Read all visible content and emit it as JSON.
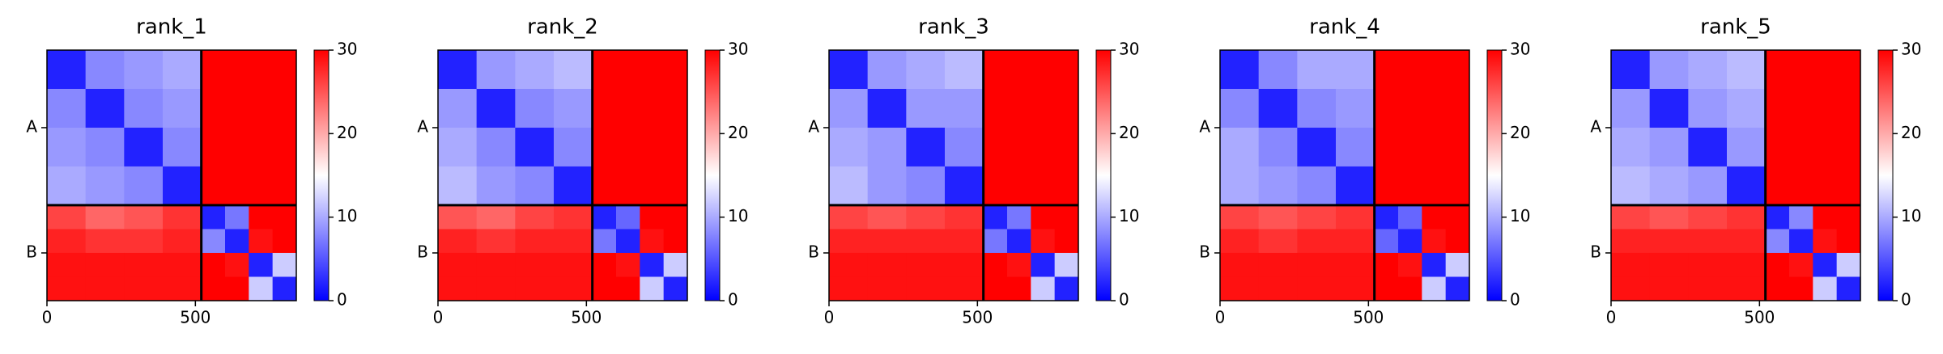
{
  "chart_data": [
    {
      "type": "heatmap",
      "title": "rank_1",
      "x_edges": [
        0,
        130,
        260,
        390,
        520,
        600,
        680,
        760,
        840
      ],
      "y_edges": [
        0,
        130,
        260,
        390,
        520,
        600,
        680,
        760,
        840
      ],
      "values": [
        [
          2,
          8,
          9,
          10,
          30,
          30,
          30,
          30
        ],
        [
          8,
          2,
          8,
          9,
          30,
          30,
          30,
          30
        ],
        [
          9,
          8,
          2,
          8,
          30,
          30,
          30,
          30
        ],
        [
          10,
          9,
          8,
          2,
          30,
          30,
          30,
          30
        ],
        [
          26,
          24,
          25,
          27,
          2,
          7,
          30,
          30
        ],
        [
          28,
          27,
          27,
          28,
          8,
          2,
          29,
          30
        ],
        [
          29,
          29,
          29,
          29,
          30,
          29,
          2,
          12
        ],
        [
          29,
          29,
          29,
          29,
          30,
          30,
          12,
          2
        ]
      ],
      "xlim": [
        0,
        840
      ],
      "ylim": [
        840,
        0
      ],
      "xticks": [
        0,
        500
      ],
      "yticks": [
        {
          "value": 260,
          "label": "A"
        },
        {
          "value": 680,
          "label": "B"
        }
      ],
      "chain_boundaries": [
        520
      ],
      "clim": [
        0,
        30
      ],
      "cticks": [
        0,
        10,
        20,
        30
      ],
      "colormap": [
        "#0000ff",
        "#ffffff",
        "#ff0000"
      ]
    },
    {
      "type": "heatmap",
      "title": "rank_2",
      "x_edges": [
        0,
        130,
        260,
        390,
        520,
        600,
        680,
        760,
        840
      ],
      "y_edges": [
        0,
        130,
        260,
        390,
        520,
        600,
        680,
        760,
        840
      ],
      "values": [
        [
          2,
          9,
          10,
          11,
          30,
          30,
          30,
          30
        ],
        [
          9,
          2,
          8,
          9,
          30,
          30,
          30,
          30
        ],
        [
          10,
          8,
          2,
          8,
          30,
          30,
          30,
          30
        ],
        [
          11,
          9,
          8,
          2,
          30,
          30,
          30,
          30
        ],
        [
          25,
          24,
          26,
          27,
          2,
          6,
          30,
          30
        ],
        [
          28,
          27,
          28,
          28,
          7,
          2,
          29,
          30
        ],
        [
          29,
          29,
          29,
          29,
          30,
          29,
          2,
          12
        ],
        [
          29,
          29,
          29,
          29,
          30,
          30,
          12,
          2
        ]
      ],
      "xlim": [
        0,
        840
      ],
      "ylim": [
        840,
        0
      ],
      "xticks": [
        0,
        500
      ],
      "yticks": [
        {
          "value": 260,
          "label": "A"
        },
        {
          "value": 680,
          "label": "B"
        }
      ],
      "chain_boundaries": [
        520
      ],
      "clim": [
        0,
        30
      ],
      "cticks": [
        0,
        10,
        20,
        30
      ],
      "colormap": [
        "#0000ff",
        "#ffffff",
        "#ff0000"
      ]
    },
    {
      "type": "heatmap",
      "title": "rank_3",
      "x_edges": [
        0,
        130,
        260,
        390,
        520,
        600,
        680,
        760,
        840
      ],
      "y_edges": [
        0,
        130,
        260,
        390,
        520,
        600,
        680,
        760,
        840
      ],
      "values": [
        [
          2,
          9,
          10,
          11,
          30,
          30,
          30,
          30
        ],
        [
          9,
          2,
          9,
          9,
          30,
          30,
          30,
          30
        ],
        [
          10,
          9,
          2,
          8,
          30,
          30,
          30,
          30
        ],
        [
          11,
          9,
          8,
          2,
          30,
          30,
          30,
          30
        ],
        [
          26,
          25,
          26,
          27,
          2,
          7,
          30,
          30
        ],
        [
          28,
          28,
          28,
          28,
          7,
          2,
          29,
          30
        ],
        [
          29,
          29,
          29,
          29,
          30,
          29,
          2,
          12
        ],
        [
          29,
          29,
          29,
          29,
          30,
          30,
          12,
          2
        ]
      ],
      "xlim": [
        0,
        840
      ],
      "ylim": [
        840,
        0
      ],
      "xticks": [
        0,
        500
      ],
      "yticks": [
        {
          "value": 260,
          "label": "A"
        },
        {
          "value": 680,
          "label": "B"
        }
      ],
      "chain_boundaries": [
        520
      ],
      "clim": [
        0,
        30
      ],
      "cticks": [
        0,
        10,
        20,
        30
      ],
      "colormap": [
        "#0000ff",
        "#ffffff",
        "#ff0000"
      ]
    },
    {
      "type": "heatmap",
      "title": "rank_4",
      "x_edges": [
        0,
        130,
        260,
        390,
        520,
        600,
        680,
        760,
        840
      ],
      "y_edges": [
        0,
        130,
        260,
        390,
        520,
        600,
        680,
        760,
        840
      ],
      "values": [
        [
          2,
          8,
          10,
          10,
          30,
          30,
          30,
          30
        ],
        [
          8,
          2,
          8,
          9,
          30,
          30,
          30,
          30
        ],
        [
          10,
          8,
          2,
          8,
          30,
          30,
          30,
          30
        ],
        [
          10,
          9,
          8,
          2,
          30,
          30,
          30,
          30
        ],
        [
          26,
          25,
          26,
          27,
          2,
          6,
          30,
          30
        ],
        [
          28,
          27,
          28,
          28,
          6,
          2,
          29,
          30
        ],
        [
          29,
          29,
          29,
          29,
          30,
          29,
          2,
          12
        ],
        [
          29,
          29,
          29,
          29,
          30,
          30,
          12,
          2
        ]
      ],
      "xlim": [
        0,
        840
      ],
      "ylim": [
        840,
        0
      ],
      "xticks": [
        0,
        500
      ],
      "yticks": [
        {
          "value": 260,
          "label": "A"
        },
        {
          "value": 680,
          "label": "B"
        }
      ],
      "chain_boundaries": [
        520
      ],
      "clim": [
        0,
        30
      ],
      "cticks": [
        0,
        10,
        20,
        30
      ],
      "colormap": [
        "#0000ff",
        "#ffffff",
        "#ff0000"
      ]
    },
    {
      "type": "heatmap",
      "title": "rank_5",
      "x_edges": [
        0,
        130,
        260,
        390,
        520,
        600,
        680,
        760,
        840
      ],
      "y_edges": [
        0,
        130,
        260,
        390,
        520,
        600,
        680,
        760,
        840
      ],
      "values": [
        [
          2,
          9,
          10,
          11,
          30,
          30,
          30,
          30
        ],
        [
          9,
          2,
          9,
          10,
          30,
          30,
          30,
          30
        ],
        [
          10,
          9,
          2,
          9,
          30,
          30,
          30,
          30
        ],
        [
          11,
          10,
          9,
          2,
          30,
          30,
          30,
          30
        ],
        [
          26,
          25,
          26,
          27,
          2,
          8,
          30,
          30
        ],
        [
          28,
          28,
          28,
          28,
          8,
          2,
          29,
          30
        ],
        [
          29,
          29,
          29,
          29,
          30,
          29,
          2,
          12
        ],
        [
          29,
          29,
          29,
          29,
          30,
          30,
          12,
          2
        ]
      ],
      "xlim": [
        0,
        840
      ],
      "ylim": [
        840,
        0
      ],
      "xticks": [
        0,
        500
      ],
      "yticks": [
        {
          "value": 260,
          "label": "A"
        },
        {
          "value": 680,
          "label": "B"
        }
      ],
      "chain_boundaries": [
        520
      ],
      "clim": [
        0,
        30
      ],
      "cticks": [
        0,
        10,
        20,
        30
      ],
      "colormap": [
        "#0000ff",
        "#ffffff",
        "#ff0000"
      ]
    }
  ]
}
